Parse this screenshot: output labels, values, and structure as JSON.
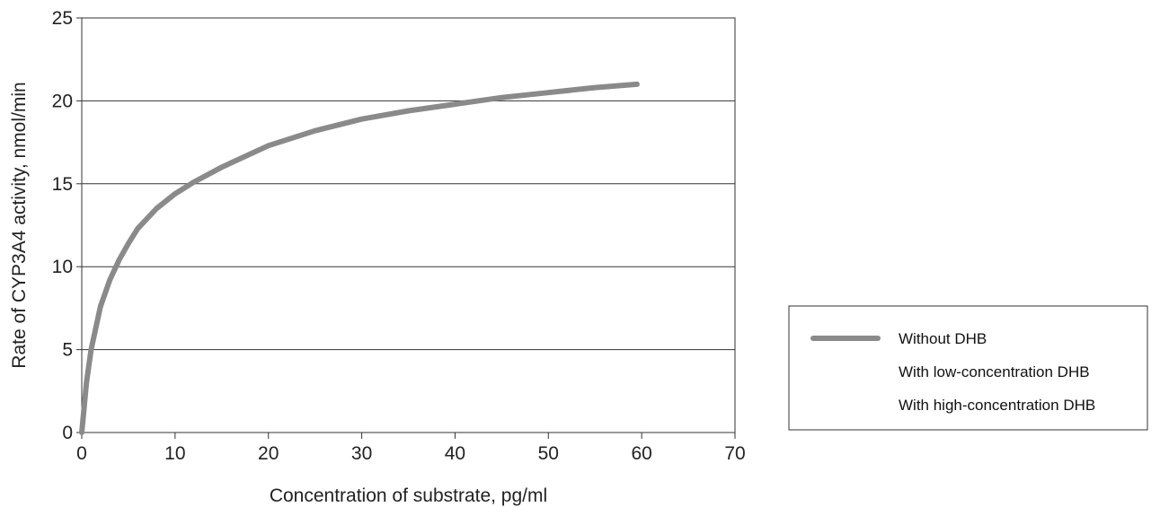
{
  "chart_data": {
    "type": "line",
    "title": "",
    "xlabel": "Concentration of substrate, pg/ml",
    "ylabel": "Rate of CYP3A4 activity, nmol/min",
    "xlim": [
      0,
      70
    ],
    "ylim": [
      0,
      25
    ],
    "x_ticks": [
      0,
      10,
      20,
      30,
      40,
      50,
      60,
      70
    ],
    "y_ticks": [
      0,
      5,
      10,
      15,
      20,
      25
    ],
    "grid": "horizontal",
    "legend_position": "right",
    "series": [
      {
        "name": "Without DHB",
        "color": "#8a8a8a",
        "x": [
          0,
          0.5,
          1,
          2,
          3,
          4,
          5,
          6,
          8,
          10,
          12,
          15,
          20,
          25,
          30,
          35,
          40,
          45,
          50,
          55,
          59.5
        ],
        "y": [
          0,
          3.0,
          5.0,
          7.6,
          9.2,
          10.4,
          11.4,
          12.3,
          13.5,
          14.4,
          15.1,
          16.0,
          17.3,
          18.2,
          18.9,
          19.4,
          19.8,
          20.2,
          20.5,
          20.8,
          21.0
        ]
      },
      {
        "name": "With low-concentration DHB",
        "color": "#8a8a8a",
        "x": [],
        "y": []
      },
      {
        "name": "With high-concentration DHB",
        "color": "#8a8a8a",
        "x": [],
        "y": []
      }
    ]
  }
}
